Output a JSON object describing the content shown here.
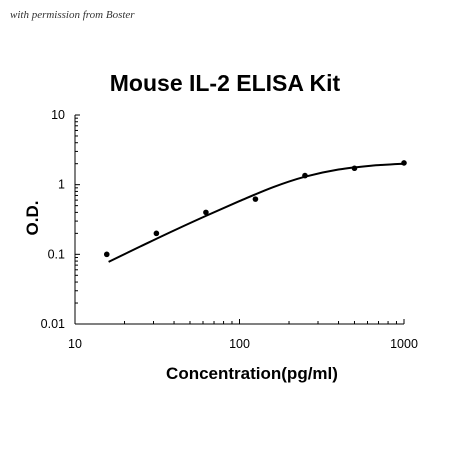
{
  "watermark": "with permission from Boster",
  "chart_data": {
    "type": "scatter",
    "title": "Mouse IL-2 ELISA Kit",
    "xlabel": "Concentration(pg/ml)",
    "ylabel": "O.D.",
    "xscale": "log",
    "yscale": "log",
    "xlim": [
      10,
      1000
    ],
    "ylim": [
      0.01,
      10
    ],
    "xticks": [
      "10",
      "100",
      "1000"
    ],
    "yticks": [
      "10",
      "1",
      "0.1",
      "0.01"
    ],
    "grid": false,
    "legend": "none",
    "series": [
      {
        "kind": "points",
        "x": [
          15.6,
          31.25,
          62.5,
          125,
          250,
          500,
          1000
        ],
        "y": [
          0.1,
          0.2,
          0.4,
          0.62,
          1.35,
          1.72,
          2.05
        ]
      },
      {
        "kind": "fit-line",
        "x": [
          16,
          25,
          40,
          63,
          100,
          160,
          250,
          400,
          630,
          1000
        ],
        "y": [
          0.078,
          0.13,
          0.22,
          0.36,
          0.58,
          0.92,
          1.3,
          1.65,
          1.87,
          2.0
        ]
      }
    ],
    "colors": {
      "points": "#000000",
      "line": "#000000",
      "axes": "#000000"
    }
  }
}
